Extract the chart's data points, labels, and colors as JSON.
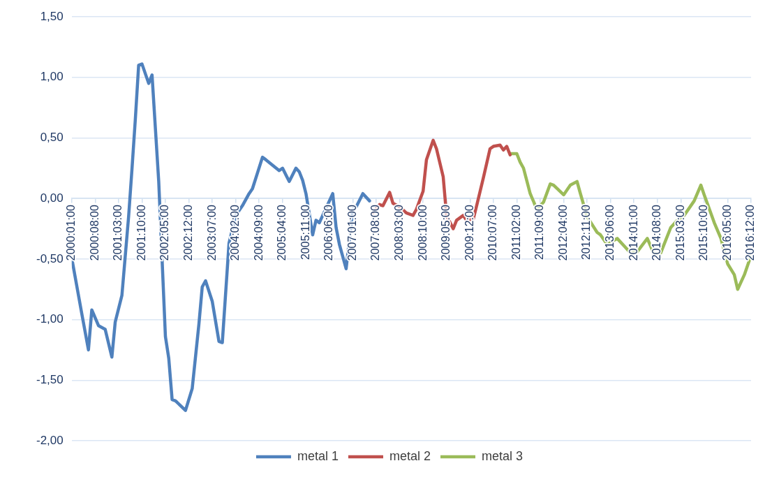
{
  "chart_data": {
    "type": "line",
    "xlim": [
      "2000-01",
      "2016-12"
    ],
    "xticks": [
      {
        "value": "2000-01",
        "label": "2000:01:00"
      },
      {
        "value": "2000-08",
        "label": "2000:08:00"
      },
      {
        "value": "2001-03",
        "label": "2001:03:00"
      },
      {
        "value": "2001-10",
        "label": "2001:10:00"
      },
      {
        "value": "2002-05",
        "label": "2002:05:00"
      },
      {
        "value": "2002-12",
        "label": "2002:12:00"
      },
      {
        "value": "2003-07",
        "label": "2003:07:00"
      },
      {
        "value": "2004-02",
        "label": "2004:02:00"
      },
      {
        "value": "2004-09",
        "label": "2004:09:00"
      },
      {
        "value": "2005-04",
        "label": "2005:04:00"
      },
      {
        "value": "2005-11",
        "label": "2005:11:00"
      },
      {
        "value": "2006-06",
        "label": "2006:06:00"
      },
      {
        "value": "2007-01",
        "label": "2007:01:00"
      },
      {
        "value": "2007-08",
        "label": "2007:08:00"
      },
      {
        "value": "2008-03",
        "label": "2008:03:00"
      },
      {
        "value": "2008-10",
        "label": "2008:10:00"
      },
      {
        "value": "2009-05",
        "label": "2009:05:00"
      },
      {
        "value": "2009-12",
        "label": "2009:12:00"
      },
      {
        "value": "2010-07",
        "label": "2010:07:00"
      },
      {
        "value": "2011-02",
        "label": "2011:02:00"
      },
      {
        "value": "2011-09",
        "label": "2011:09:00"
      },
      {
        "value": "2012-04",
        "label": "2012:04:00"
      },
      {
        "value": "2012-11",
        "label": "2012:11:00"
      },
      {
        "value": "2013-06",
        "label": "2013:06:00"
      },
      {
        "value": "2014-01",
        "label": "2014:01:00"
      },
      {
        "value": "2014-08",
        "label": "2014:08:00"
      },
      {
        "value": "2015-03",
        "label": "2015:03:00"
      },
      {
        "value": "2015-10",
        "label": "2015:10:00"
      },
      {
        "value": "2016-05",
        "label": "2016:05:00"
      },
      {
        "value": "2016-12",
        "label": "2016:12:00"
      }
    ],
    "ylim": [
      -2,
      1.5
    ],
    "yticks": [
      {
        "value": -2,
        "label": "-2,00"
      },
      {
        "value": -1.5,
        "label": "-1,50"
      },
      {
        "value": -1,
        "label": "-1,00"
      },
      {
        "value": -0.5,
        "label": "-0,50"
      },
      {
        "value": 0,
        "label": "0,00"
      },
      {
        "value": 0.5,
        "label": "0,50"
      },
      {
        "value": 1,
        "label": "1,00"
      },
      {
        "value": 1.5,
        "label": "1,50"
      }
    ],
    "grid": "y",
    "legend": "bottom",
    "marker": "none",
    "line_style": "solid",
    "series": [
      {
        "name": "metal 1",
        "color": "#4f81bd",
        "x": [
          "2000-01",
          "2000-04",
          "2000-06",
          "2000-07",
          "2000-09",
          "2000-11",
          "2001-01",
          "2001-02",
          "2001-04",
          "2001-06",
          "2001-07",
          "2001-08",
          "2001-09",
          "2001-10",
          "2001-12",
          "2002-01",
          "2002-03",
          "2002-05",
          "2002-06",
          "2002-07",
          "2002-08",
          "2002-11",
          "2003-01",
          "2003-03",
          "2003-04",
          "2003-05",
          "2003-07",
          "2003-09",
          "2003-10",
          "2003-12",
          "2004-02",
          "2004-04",
          "2004-06",
          "2004-07",
          "2004-10",
          "2004-11",
          "2005-03",
          "2005-04",
          "2005-06",
          "2005-08",
          "2005-09",
          "2005-10",
          "2005-11",
          "2006-01",
          "2006-02",
          "2006-03",
          "2006-07",
          "2006-08",
          "2006-09",
          "2006-11",
          "2007-01",
          "2007-02",
          "2007-04",
          "2007-06"
        ],
        "values": [
          -0.49,
          -0.95,
          -1.25,
          -0.92,
          -1.05,
          -1.08,
          -1.31,
          -1.02,
          -0.8,
          -0.15,
          0.24,
          0.65,
          1.1,
          1.11,
          0.95,
          1.02,
          0.14,
          -1.14,
          -1.32,
          -1.66,
          -1.67,
          -1.75,
          -1.57,
          -1.04,
          -0.73,
          -0.68,
          -0.85,
          -1.18,
          -1.19,
          -0.37,
          -0.14,
          -0.06,
          0.04,
          0.08,
          0.34,
          0.32,
          0.23,
          0.25,
          0.14,
          0.25,
          0.22,
          0.15,
          0.04,
          -0.3,
          -0.18,
          -0.2,
          0.04,
          -0.24,
          -0.38,
          -0.58,
          -0.09,
          -0.07,
          0.04,
          -0.02
        ]
      },
      {
        "name": "metal 2",
        "color": "#c0504d",
        "x": [
          "2007-07",
          "2007-09",
          "2007-10",
          "2007-12",
          "2008-01",
          "2008-03",
          "2008-05",
          "2008-07",
          "2008-08",
          "2008-10",
          "2008-11",
          "2009-01",
          "2009-02",
          "2009-04",
          "2009-05",
          "2009-07",
          "2009-08",
          "2009-10",
          "2009-11",
          "2010-01",
          "2010-02",
          "2010-04",
          "2010-06",
          "2010-07",
          "2010-09",
          "2010-10",
          "2010-11",
          "2010-12"
        ],
        "values": [
          -0.12,
          -0.05,
          -0.06,
          0.05,
          -0.04,
          -0.07,
          -0.12,
          -0.14,
          -0.09,
          0.06,
          0.32,
          0.48,
          0.41,
          0.18,
          -0.14,
          -0.25,
          -0.18,
          -0.14,
          -0.18,
          -0.17,
          -0.06,
          0.17,
          0.41,
          0.43,
          0.44,
          0.4,
          0.43,
          0.36
        ]
      },
      {
        "name": "metal 3",
        "color": "#9bbb59",
        "x": [
          "2010-12",
          "2011-02",
          "2011-03",
          "2011-04",
          "2011-06",
          "2011-08",
          "2011-10",
          "2011-12",
          "2012-01",
          "2012-04",
          "2012-06",
          "2012-08",
          "2012-09",
          "2012-11",
          "2013-02",
          "2013-03",
          "2013-05",
          "2013-08",
          "2013-10",
          "2013-12",
          "2014-02",
          "2014-05",
          "2014-07",
          "2014-09",
          "2014-12",
          "2015-02",
          "2015-04",
          "2015-07",
          "2015-09",
          "2015-10",
          "2016-01",
          "2016-03",
          "2016-05",
          "2016-07",
          "2016-08",
          "2016-10",
          "2016-12"
        ],
        "values": [
          0.37,
          0.37,
          0.3,
          0.25,
          0.04,
          -0.09,
          -0.03,
          0.12,
          0.11,
          0.03,
          0.11,
          0.14,
          0.04,
          -0.15,
          -0.28,
          -0.3,
          -0.38,
          -0.33,
          -0.39,
          -0.45,
          -0.44,
          -0.33,
          -0.46,
          -0.45,
          -0.24,
          -0.18,
          -0.14,
          -0.02,
          0.11,
          0.03,
          -0.2,
          -0.33,
          -0.54,
          -0.63,
          -0.75,
          -0.63,
          -0.47
        ]
      }
    ]
  }
}
